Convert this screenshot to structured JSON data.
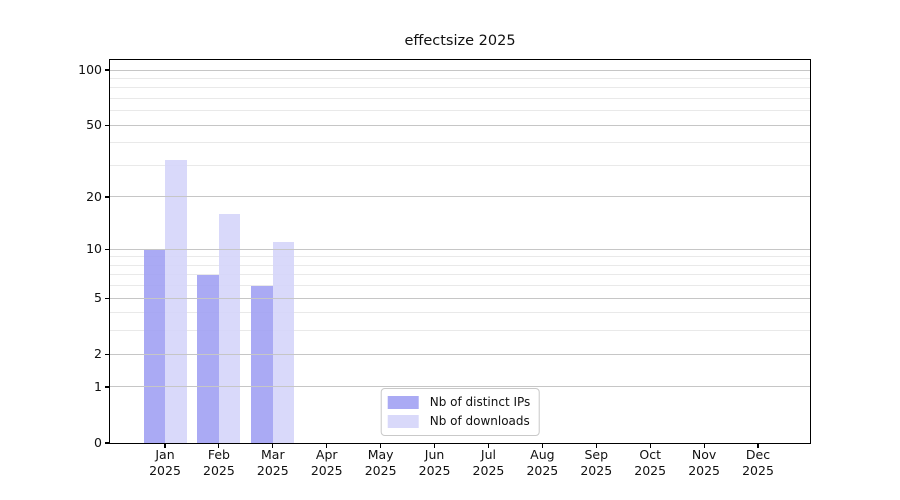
{
  "chart_data": {
    "type": "bar",
    "title": "effectsize 2025",
    "categories": [
      "Jan",
      "Feb",
      "Mar",
      "Apr",
      "May",
      "Jun",
      "Jul",
      "Aug",
      "Sep",
      "Oct",
      "Nov",
      "Dec"
    ],
    "category_year": "2025",
    "series": [
      {
        "name": "Nb of distinct IPs",
        "color": "#9e9ef2",
        "values": [
          10,
          7,
          6,
          0,
          0,
          0,
          0,
          0,
          0,
          0,
          0,
          0
        ]
      },
      {
        "name": "Nb of downloads",
        "color": "#d4d4f9",
        "values": [
          32,
          16,
          11,
          0,
          0,
          0,
          0,
          0,
          0,
          0,
          0,
          0
        ]
      }
    ],
    "yscale": "log1p",
    "ylim": [
      0,
      100
    ],
    "yticks": [
      0,
      1,
      2,
      5,
      10,
      20,
      50,
      100
    ],
    "yticks_minor": [
      3,
      4,
      6,
      7,
      8,
      9,
      30,
      40,
      60,
      70,
      80,
      90
    ],
    "grid": "on",
    "legend_position": "lower center",
    "colors": {
      "grid_major": "#c6c6c6",
      "grid_minor": "#e9e9e9",
      "axis": "#000000",
      "text": "#111111",
      "legend_border": "#c9c9c9",
      "background": "#ffffff"
    }
  }
}
